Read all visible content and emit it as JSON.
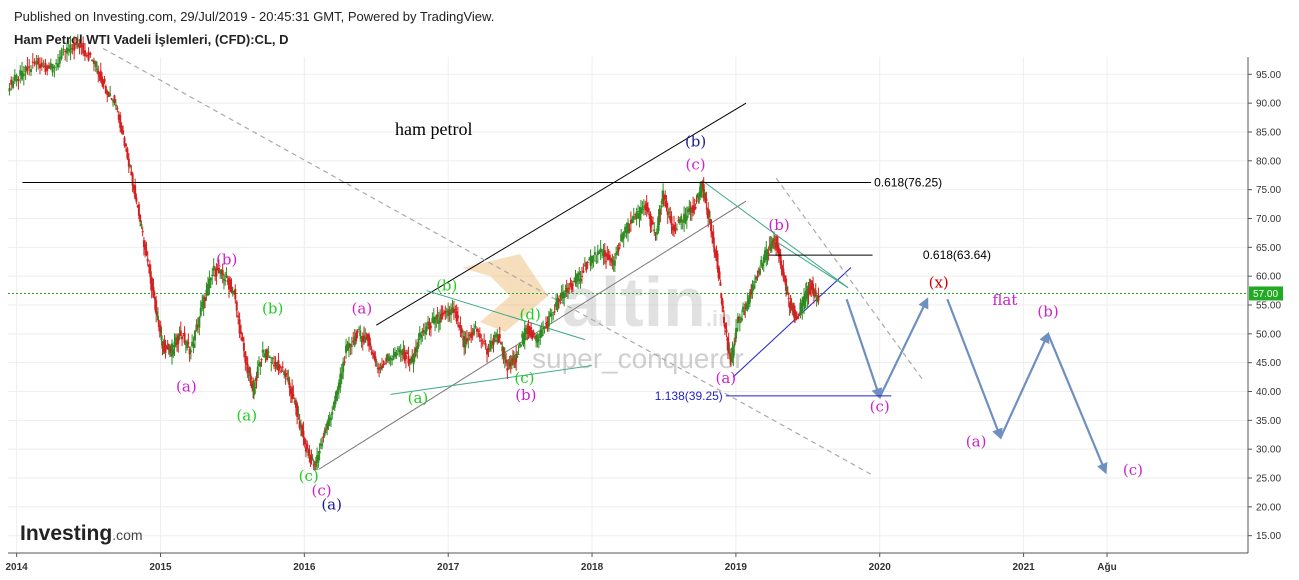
{
  "header": {
    "published": "Published on Investing.com, 29/Jul/2019 - 20:45:31 GMT, Powered by TradingView.",
    "symbol": "Ham Petrol WTI Vadeli İşlemleri, (CFD):CL, D"
  },
  "brand": {
    "name": "Investing",
    "suffix": ".com"
  },
  "watermark": {
    "logo_text": "altin",
    "logo_suffix": ".in",
    "user": "super_conqueror"
  },
  "colors": {
    "price_up": "#2e8b22",
    "price_down": "#d42020",
    "green_wave": "#22cc22",
    "magenta_wave": "#cc22cc",
    "navy_wave": "#1a1a99",
    "red_wave": "#cc0000",
    "forecast_arrow": "#6f8fc0",
    "current_price_bg": "#22aa22"
  },
  "chart_data": {
    "type": "line",
    "title": "ham petrol",
    "xlabel": "",
    "ylabel": "",
    "ylim": [
      12,
      98
    ],
    "xlim": [
      2013.94,
      2022.56
    ],
    "grid": true,
    "x_ticks": [
      {
        "value": 2014.0,
        "label": "2014"
      },
      {
        "value": 2015.0,
        "label": "2015"
      },
      {
        "value": 2016.0,
        "label": "2016"
      },
      {
        "value": 2017.0,
        "label": "2017"
      },
      {
        "value": 2018.0,
        "label": "2018"
      },
      {
        "value": 2019.0,
        "label": "2019"
      },
      {
        "value": 2020.0,
        "label": "2020"
      },
      {
        "value": 2021.0,
        "label": "2021"
      },
      {
        "value": 2021.58,
        "label": "Ağu"
      }
    ],
    "y_ticks": [
      {
        "value": 95,
        "label": "95.00"
      },
      {
        "value": 90,
        "label": "90.00"
      },
      {
        "value": 85,
        "label": "85.00"
      },
      {
        "value": 80,
        "label": "80.00"
      },
      {
        "value": 75,
        "label": "75.00"
      },
      {
        "value": 70,
        "label": "70.00"
      },
      {
        "value": 65,
        "label": "65.00"
      },
      {
        "value": 60,
        "label": "60.00"
      },
      {
        "value": 55,
        "label": "55.00"
      },
      {
        "value": 50,
        "label": "50.00"
      },
      {
        "value": 45,
        "label": "45.00"
      },
      {
        "value": 40,
        "label": "40.00"
      },
      {
        "value": 35,
        "label": "35.00"
      },
      {
        "value": 30,
        "label": "30.00"
      },
      {
        "value": 25,
        "label": "25.00"
      },
      {
        "value": 20,
        "label": "20.00"
      },
      {
        "value": 15,
        "label": "15.00"
      }
    ],
    "current_price": {
      "value": 57.0,
      "label": "57.00"
    },
    "price_series": {
      "name": "",
      "x": [
        2013.95,
        2014.05,
        2014.15,
        2014.25,
        2014.35,
        2014.45,
        2014.55,
        2014.62,
        2014.7,
        2014.78,
        2014.85,
        2014.92,
        2014.97,
        2015.02,
        2015.08,
        2015.15,
        2015.22,
        2015.3,
        2015.38,
        2015.45,
        2015.52,
        2015.6,
        2015.65,
        2015.72,
        2015.8,
        2015.88,
        2015.95,
        2016.02,
        2016.08,
        2016.15,
        2016.22,
        2016.3,
        2016.38,
        2016.45,
        2016.52,
        2016.6,
        2016.68,
        2016.75,
        2016.82,
        2016.9,
        2016.97,
        2017.05,
        2017.12,
        2017.2,
        2017.28,
        2017.35,
        2017.42,
        2017.48,
        2017.55,
        2017.62,
        2017.7,
        2017.78,
        2017.85,
        2017.92,
        2018.0,
        2018.08,
        2018.15,
        2018.22,
        2018.3,
        2018.38,
        2018.45,
        2018.5,
        2018.57,
        2018.65,
        2018.72,
        2018.77,
        2018.82,
        2018.88,
        2018.93,
        2018.97,
        2019.02,
        2019.08,
        2019.15,
        2019.22,
        2019.28,
        2019.33,
        2019.38,
        2019.43,
        2019.48,
        2019.53,
        2019.58
      ],
      "y": [
        93,
        95,
        97,
        96,
        99,
        100,
        97,
        93,
        90,
        81,
        72,
        62,
        55,
        48,
        47,
        50,
        47,
        55,
        61,
        60,
        57,
        45,
        40,
        47,
        45,
        43,
        37,
        30,
        27,
        33,
        38,
        47,
        50,
        49,
        44,
        46,
        47,
        45,
        50,
        52,
        53,
        54,
        48,
        51,
        47,
        50,
        44,
        46,
        51,
        49,
        52,
        56,
        58,
        60,
        63,
        64,
        62,
        67,
        70,
        72,
        67,
        74,
        68,
        70,
        72,
        76,
        70,
        62,
        51,
        45,
        52,
        55,
        60,
        64,
        66,
        61,
        55,
        53,
        56,
        58,
        56
      ]
    },
    "channel_lines": [
      {
        "x1": 2016.5,
        "y1": 51.5,
        "x2": 2019.07,
        "y2": 90,
        "color": "#000000"
      },
      {
        "x1": 2016.1,
        "y1": 26.5,
        "x2": 2019.07,
        "y2": 73,
        "color": "#777777"
      },
      {
        "x1": 2018.98,
        "y1": 42.5,
        "x2": 2019.8,
        "y2": 61.5,
        "color": "#2222cc"
      }
    ],
    "dashed_lines": [
      {
        "x1": 2014.6,
        "y1": 99.5,
        "x2": 2019.95,
        "y2": 25.5
      },
      {
        "x1": 2019.28,
        "y1": 77,
        "x2": 2020.3,
        "y2": 42
      }
    ],
    "teal_lines": [
      {
        "x1": 2016.85,
        "y1": 57.5,
        "x2": 2017.95,
        "y2": 49
      },
      {
        "x1": 2016.6,
        "y1": 39.5,
        "x2": 2018.0,
        "y2": 44.5
      },
      {
        "x1": 2018.77,
        "y1": 76.5,
        "x2": 2019.78,
        "y2": 58
      },
      {
        "x1": 2019.28,
        "y1": 66,
        "x2": 2019.78,
        "y2": 58
      }
    ],
    "fib_levels": [
      {
        "label": "0.618(76.25)",
        "value": 76.25,
        "x_start": 2014.04,
        "x_end": 2019.94,
        "color": "#000000"
      },
      {
        "label": "0.618(63.64)",
        "value": 63.64,
        "x_start": 2019.23,
        "x_end": 2019.3,
        "color": "#000000"
      },
      {
        "label": "1.138(39.25)",
        "value": 39.25,
        "x_start": 2018.93,
        "x_end": 2020.08,
        "color": "#2222cc"
      }
    ],
    "forecast_path": {
      "x": [
        2019.77,
        2020.0,
        2020.33,
        2020.47,
        2020.84,
        2021.17,
        2021.57
      ],
      "y": [
        56,
        39,
        56,
        56,
        32,
        50,
        26
      ]
    },
    "wave_labels": [
      {
        "text": "(b)",
        "x": 2015.46,
        "y": 62,
        "color": "#cc22cc"
      },
      {
        "text": "(a)",
        "x": 2015.18,
        "y": 40,
        "color": "#cc22cc"
      },
      {
        "text": "(b)",
        "x": 2015.78,
        "y": 53.5,
        "color": "#22cc22"
      },
      {
        "text": "(a)",
        "x": 2015.6,
        "y": 35,
        "color": "#22cc22"
      },
      {
        "text": "(c)",
        "x": 2016.03,
        "y": 24.5,
        "color": "#22cc22"
      },
      {
        "text": "(c)",
        "x": 2016.12,
        "y": 22,
        "color": "#cc22cc"
      },
      {
        "text": "(a)",
        "x": 2016.19,
        "y": 19.5,
        "color": "#1a1a99"
      },
      {
        "text": "(a)",
        "x": 2016.4,
        "y": 53.5,
        "color": "#cc22cc"
      },
      {
        "text": "(a)",
        "x": 2016.79,
        "y": 38,
        "color": "#22cc22"
      },
      {
        "text": "(b)",
        "x": 2016.99,
        "y": 57.5,
        "color": "#22cc22"
      },
      {
        "text": "(d)",
        "x": 2017.57,
        "y": 52.5,
        "color": "#22cc22"
      },
      {
        "text": "(c)",
        "x": 2017.53,
        "y": 41.5,
        "color": "#22cc22"
      },
      {
        "text": "(b)",
        "x": 2017.54,
        "y": 38.5,
        "color": "#cc22cc"
      },
      {
        "text": "(b)",
        "x": 2018.72,
        "y": 82.5,
        "color": "#1a1a99"
      },
      {
        "text": "(c)",
        "x": 2018.72,
        "y": 78.5,
        "color": "#cc22cc"
      },
      {
        "text": "(b)",
        "x": 2019.3,
        "y": 68,
        "color": "#cc22cc"
      },
      {
        "text": "(a)",
        "x": 2018.93,
        "y": 41.5,
        "color": "#cc22cc"
      },
      {
        "text": "(x)",
        "x": 2020.41,
        "y": 58,
        "color": "#cc0000"
      },
      {
        "text": "flat",
        "x": 2020.87,
        "y": 55,
        "color": "#cc22cc"
      },
      {
        "text": "(c)",
        "x": 2020.0,
        "y": 36.5,
        "color": "#cc22cc"
      },
      {
        "text": "(b)",
        "x": 2021.17,
        "y": 53,
        "color": "#cc22cc"
      },
      {
        "text": "(a)",
        "x": 2020.67,
        "y": 30.5,
        "color": "#cc22cc"
      },
      {
        "text": "(c)",
        "x": 2021.76,
        "y": 25.5,
        "color": "#cc22cc"
      }
    ]
  }
}
